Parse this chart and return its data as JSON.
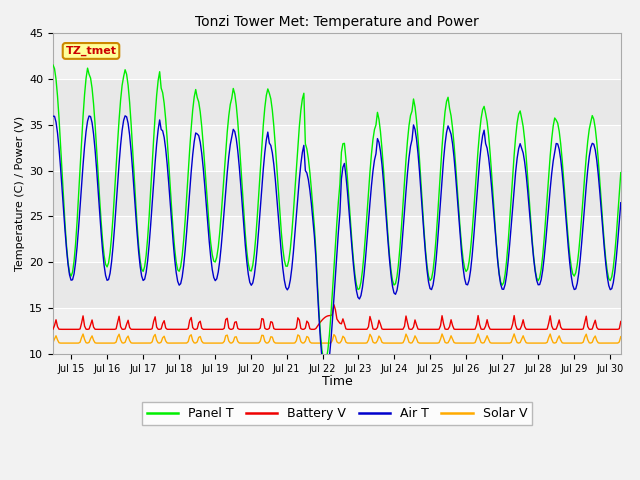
{
  "title": "Tonzi Tower Met: Temperature and Power",
  "xlabel": "Time",
  "ylabel": "Temperature (C) / Power (V)",
  "ylim": [
    10,
    45
  ],
  "xlim": [
    14.5,
    30.3
  ],
  "fig_facecolor": "#f2f2f2",
  "ax_facecolor": "#e8e8e8",
  "grid_color": "#ffffff",
  "label_box_text": "TZ_tmet",
  "label_box_facecolor": "#ffff99",
  "label_box_edgecolor": "#cc8800",
  "label_text_color": "#cc0000",
  "colors": {
    "panel_t": "#00ee00",
    "battery_v": "#ee0000",
    "air_t": "#0000cc",
    "solar_v": "#ffaa00"
  },
  "yticks": [
    10,
    15,
    20,
    25,
    30,
    35,
    40,
    45
  ],
  "xtick_positions": [
    15,
    16,
    17,
    18,
    19,
    20,
    21,
    22,
    23,
    24,
    25,
    26,
    27,
    28,
    29,
    30
  ],
  "xtick_labels": [
    "Jul 15",
    "Jul 16",
    "Jul 17",
    "Jul 18",
    "Jul 19",
    "Jul 20",
    "Jul 21",
    "Jul 22",
    "Jul 23",
    "Jul 24",
    "Jul 25",
    "Jul 26",
    "Jul 27",
    "Jul 28",
    "Jul 29",
    "Jul 30"
  ],
  "legend_labels": [
    "Panel T",
    "Battery V",
    "Air T",
    "Solar V"
  ]
}
